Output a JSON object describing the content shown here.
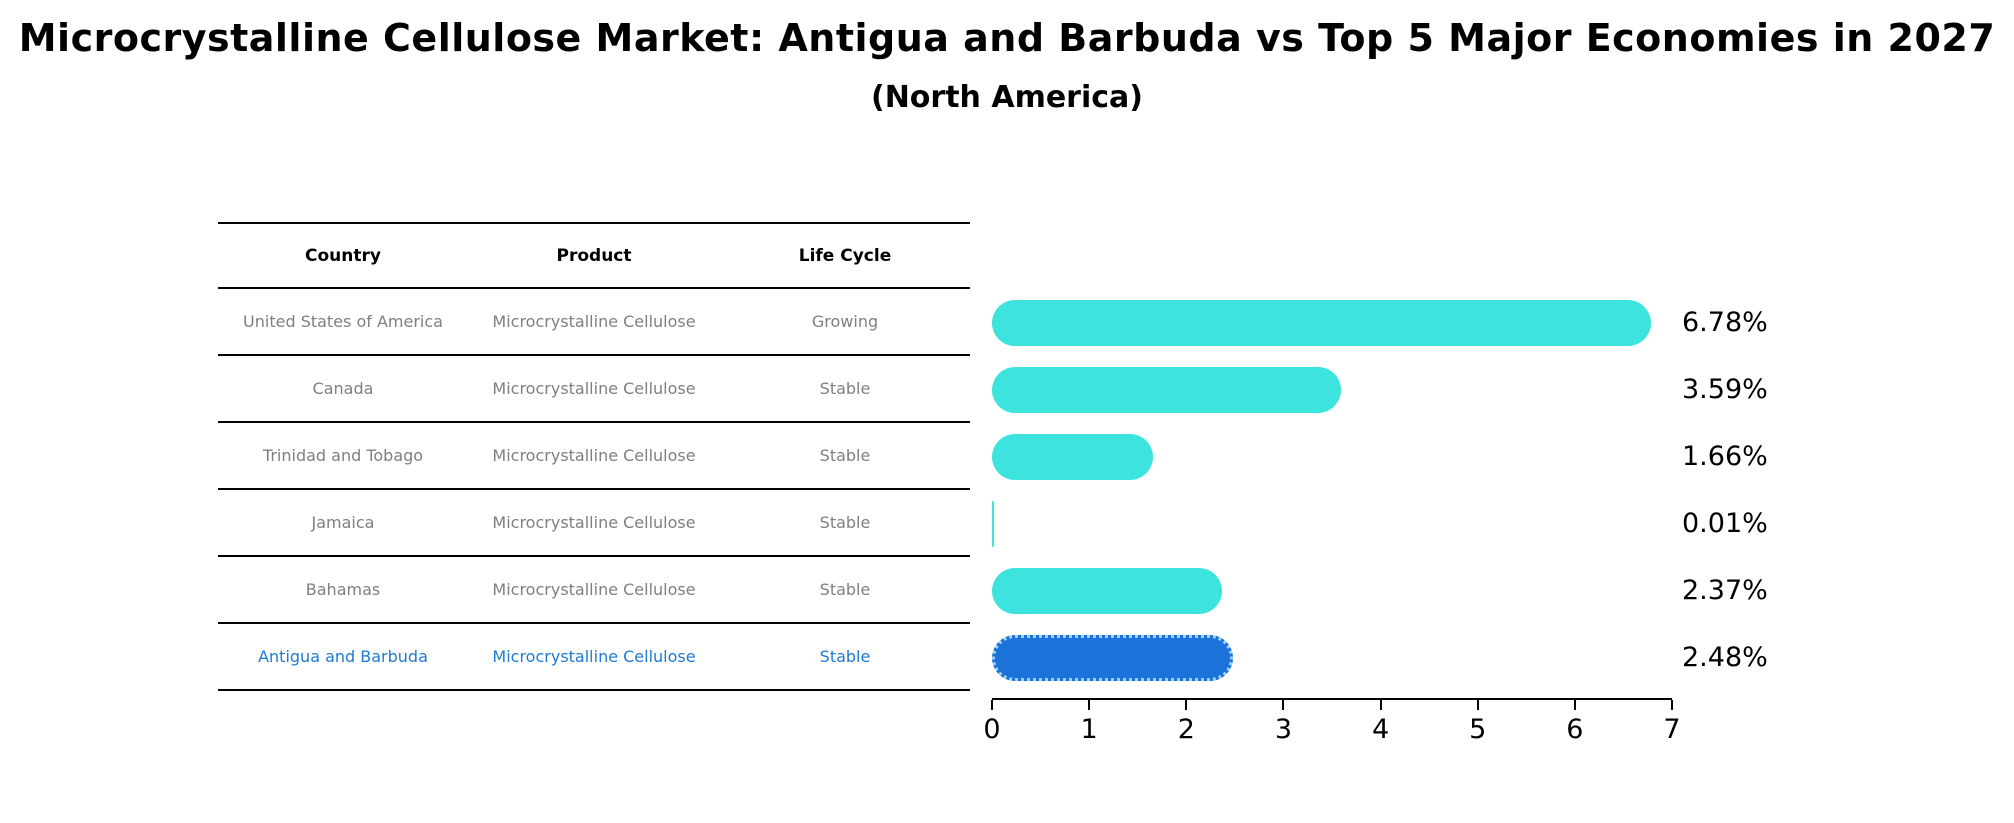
{
  "title": "Microcrystalline Cellulose Market: Antigua and Barbuda vs Top 5 Major Economies in 2027",
  "subtitle": "(North America)",
  "table": {
    "headers": [
      "Country",
      "Product",
      "Life Cycle"
    ],
    "rows": [
      {
        "country": "United States of America",
        "product": "Microcrystalline Cellulose",
        "life_cycle": "Growing"
      },
      {
        "country": "Canada",
        "product": "Microcrystalline Cellulose",
        "life_cycle": "Stable"
      },
      {
        "country": "Trinidad and Tobago",
        "product": "Microcrystalline Cellulose",
        "life_cycle": "Stable"
      },
      {
        "country": "Jamaica",
        "product": "Microcrystalline Cellulose",
        "life_cycle": "Stable"
      },
      {
        "country": "Bahamas",
        "product": "Microcrystalline Cellulose",
        "life_cycle": "Stable"
      },
      {
        "country": "Antigua and Barbuda",
        "product": "Microcrystalline Cellulose",
        "life_cycle": "Stable"
      }
    ]
  },
  "chart_data": {
    "type": "bar",
    "orientation": "horizontal",
    "title": "Microcrystalline Cellulose Market: Antigua and Barbuda vs Top 5 Major Economies in 2027",
    "subtitle": "(North America)",
    "categories": [
      "United States of America",
      "Canada",
      "Trinidad and Tobago",
      "Jamaica",
      "Bahamas",
      "Antigua and Barbuda"
    ],
    "values": [
      6.78,
      3.59,
      1.66,
      0.01,
      2.37,
      2.48
    ],
    "value_labels": [
      "6.78%",
      "3.59%",
      "1.66%",
      "0.01%",
      "2.37%",
      "2.48%"
    ],
    "x_ticks": [
      0,
      1,
      2,
      3,
      4,
      5,
      6,
      7
    ],
    "xlim": [
      0,
      7
    ],
    "grid": false,
    "legend": "none",
    "highlight_index": 5,
    "colors": {
      "bar": "#3DE3DD",
      "highlight_bar": "#1B72D8",
      "highlight_border": "#9fd0f2",
      "highlight_text": "#1E7AD4",
      "table_text": "#7f7f7f",
      "axis_text": "#000000"
    }
  }
}
